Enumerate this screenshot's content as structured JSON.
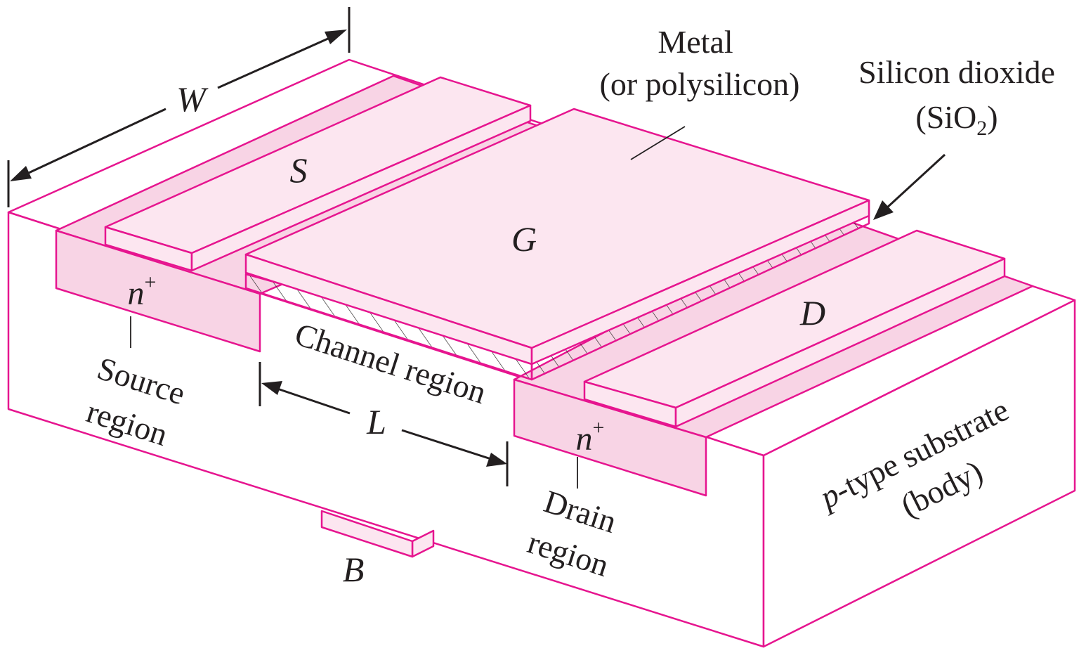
{
  "colors": {
    "outline": "#e6158f",
    "n_plus_fill": "#f8d4e5",
    "metal_fill": "#fce6f0",
    "substrate_fill": "#ffffff",
    "text": "#231f20"
  },
  "labels": {
    "width": "W",
    "length": "L",
    "source_terminal": "S",
    "gate_terminal": "G",
    "drain_terminal": "D",
    "body_terminal": "B",
    "metal_line1": "Metal",
    "metal_line2": "(or polysilicon)",
    "oxide_line1": "Silicon dioxide",
    "oxide_line2_prefix": "(SiO",
    "oxide_line2_sub": "2",
    "oxide_line2_suffix": ")",
    "source_doping": "n",
    "drain_doping": "n",
    "doping_sup": "+",
    "source_region_line1": "Source",
    "source_region_line2": "region",
    "drain_region_line1": "Drain",
    "drain_region_line2": "region",
    "channel": "Channel region",
    "substrate_italic": "p",
    "substrate_rest": "-type substrate",
    "substrate_line2": "(body)"
  }
}
